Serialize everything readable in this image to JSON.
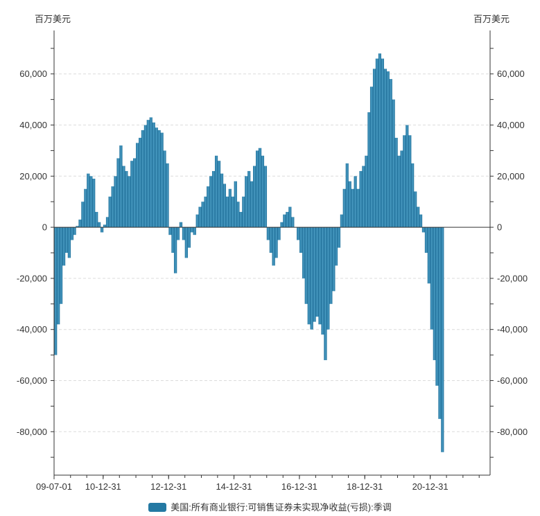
{
  "units": {
    "left": "百万美元",
    "right": "百万美元"
  },
  "legend": {
    "label": "美国:所有商业银行:可销售证券未实现净收益(亏损):季调",
    "color": "#2479a3"
  },
  "chart_data": {
    "type": "bar",
    "title": "",
    "x_ticks": [
      "09-07-01",
      "10-12-31",
      "12-12-31",
      "14-12-31",
      "16-12-31",
      "18-12-31",
      "20-12-31"
    ],
    "x_range": [
      "2009-07-01",
      "2022-10-31"
    ],
    "ylim": [
      -97000,
      77000
    ],
    "y_ticks": [
      -80000,
      -60000,
      -40000,
      -20000,
      0,
      20000,
      40000,
      60000
    ],
    "y_tick_labels": [
      "-80,000",
      "-60,000",
      "-40,000",
      "-20,000",
      "0",
      "20,000",
      "40,000",
      "60,000"
    ],
    "grid": "horizontal dashed",
    "legend_position": "bottom",
    "series": [
      {
        "name": "美国:所有商业银行:可销售证券未实现净收益(亏损):季调",
        "color": "#2479a3",
        "points": [
          [
            "2009-07-01",
            -50000
          ],
          [
            "2009-08-01",
            -38000
          ],
          [
            "2009-09-01",
            -30000
          ],
          [
            "2009-10-01",
            -15000
          ],
          [
            "2009-11-01",
            -10000
          ],
          [
            "2009-12-01",
            -12000
          ],
          [
            "2010-01-01",
            -5000
          ],
          [
            "2010-02-01",
            -3000
          ],
          [
            "2010-03-01",
            500
          ],
          [
            "2010-04-01",
            3000
          ],
          [
            "2010-05-01",
            10000
          ],
          [
            "2010-06-01",
            15000
          ],
          [
            "2010-07-01",
            21000
          ],
          [
            "2010-08-01",
            20000
          ],
          [
            "2010-09-01",
            19000
          ],
          [
            "2010-10-01",
            6000
          ],
          [
            "2010-11-01",
            2000
          ],
          [
            "2010-12-01",
            -2000
          ],
          [
            "2011-01-01",
            1000
          ],
          [
            "2011-02-01",
            4000
          ],
          [
            "2011-03-01",
            12000
          ],
          [
            "2011-04-01",
            16000
          ],
          [
            "2011-05-01",
            20000
          ],
          [
            "2011-06-01",
            27000
          ],
          [
            "2011-07-01",
            32000
          ],
          [
            "2011-08-01",
            24000
          ],
          [
            "2011-09-01",
            22000
          ],
          [
            "2011-10-01",
            20000
          ],
          [
            "2011-11-01",
            26000
          ],
          [
            "2011-12-01",
            27000
          ],
          [
            "2012-01-01",
            33000
          ],
          [
            "2012-02-01",
            35000
          ],
          [
            "2012-03-01",
            38000
          ],
          [
            "2012-04-01",
            40000
          ],
          [
            "2012-05-01",
            42000
          ],
          [
            "2012-06-01",
            43000
          ],
          [
            "2012-07-01",
            41000
          ],
          [
            "2012-08-01",
            39000
          ],
          [
            "2012-09-01",
            38000
          ],
          [
            "2012-10-01",
            37000
          ],
          [
            "2012-11-01",
            30000
          ],
          [
            "2012-12-01",
            25000
          ],
          [
            "2013-01-01",
            -3000
          ],
          [
            "2013-02-01",
            -10000
          ],
          [
            "2013-03-01",
            -18000
          ],
          [
            "2013-04-01",
            -5000
          ],
          [
            "2013-05-01",
            2000
          ],
          [
            "2013-06-01",
            -5000
          ],
          [
            "2013-07-01",
            -12000
          ],
          [
            "2013-08-01",
            -8000
          ],
          [
            "2013-09-01",
            -2000
          ],
          [
            "2013-10-01",
            -3000
          ],
          [
            "2013-11-01",
            5000
          ],
          [
            "2013-12-01",
            8000
          ],
          [
            "2014-01-01",
            10000
          ],
          [
            "2014-02-01",
            12000
          ],
          [
            "2014-03-01",
            16000
          ],
          [
            "2014-04-01",
            20000
          ],
          [
            "2014-05-01",
            22000
          ],
          [
            "2014-06-01",
            28000
          ],
          [
            "2014-07-01",
            26000
          ],
          [
            "2014-08-01",
            21000
          ],
          [
            "2014-09-01",
            17000
          ],
          [
            "2014-10-01",
            12000
          ],
          [
            "2014-11-01",
            15000
          ],
          [
            "2014-12-01",
            12000
          ],
          [
            "2015-01-01",
            18000
          ],
          [
            "2015-02-01",
            10000
          ],
          [
            "2015-03-01",
            6000
          ],
          [
            "2015-04-01",
            12000
          ],
          [
            "2015-05-01",
            20000
          ],
          [
            "2015-06-01",
            22000
          ],
          [
            "2015-07-01",
            18000
          ],
          [
            "2015-08-01",
            24000
          ],
          [
            "2015-09-01",
            30000
          ],
          [
            "2015-10-01",
            31000
          ],
          [
            "2015-11-01",
            28000
          ],
          [
            "2015-12-01",
            24000
          ],
          [
            "2016-01-01",
            -5000
          ],
          [
            "2016-02-01",
            -10000
          ],
          [
            "2016-03-01",
            -15000
          ],
          [
            "2016-04-01",
            -12000
          ],
          [
            "2016-05-01",
            -5000
          ],
          [
            "2016-06-01",
            2000
          ],
          [
            "2016-07-01",
            5000
          ],
          [
            "2016-08-01",
            6000
          ],
          [
            "2016-09-01",
            8000
          ],
          [
            "2016-10-01",
            4000
          ],
          [
            "2016-11-01",
            0
          ],
          [
            "2016-12-01",
            -5000
          ],
          [
            "2017-01-01",
            -10000
          ],
          [
            "2017-02-01",
            -20000
          ],
          [
            "2017-03-01",
            -30000
          ],
          [
            "2017-04-01",
            -38000
          ],
          [
            "2017-05-01",
            -40000
          ],
          [
            "2017-06-01",
            -37000
          ],
          [
            "2017-07-01",
            -35000
          ],
          [
            "2017-08-01",
            -38000
          ],
          [
            "2017-09-01",
            -42000
          ],
          [
            "2017-10-01",
            -52000
          ],
          [
            "2017-11-01",
            -40000
          ],
          [
            "2017-12-01",
            -30000
          ],
          [
            "2018-01-01",
            -25000
          ],
          [
            "2018-02-01",
            -15000
          ],
          [
            "2018-03-01",
            -8000
          ],
          [
            "2018-04-01",
            5000
          ],
          [
            "2018-05-01",
            15000
          ],
          [
            "2018-06-01",
            25000
          ],
          [
            "2018-07-01",
            18000
          ],
          [
            "2018-08-01",
            15000
          ],
          [
            "2018-09-01",
            20000
          ],
          [
            "2018-10-01",
            15000
          ],
          [
            "2018-11-01",
            22000
          ],
          [
            "2018-12-01",
            24000
          ],
          [
            "2019-01-01",
            28000
          ],
          [
            "2019-02-01",
            45000
          ],
          [
            "2019-03-01",
            55000
          ],
          [
            "2019-04-01",
            62000
          ],
          [
            "2019-05-01",
            66000
          ],
          [
            "2019-06-01",
            68000
          ],
          [
            "2019-07-01",
            66000
          ],
          [
            "2019-08-01",
            62000
          ],
          [
            "2019-09-01",
            61000
          ],
          [
            "2019-10-01",
            58000
          ],
          [
            "2019-11-01",
            50000
          ],
          [
            "2019-12-01",
            35000
          ],
          [
            "2020-01-01",
            28000
          ],
          [
            "2020-02-01",
            30000
          ],
          [
            "2020-03-01",
            36000
          ],
          [
            "2020-04-01",
            40000
          ],
          [
            "2020-05-01",
            36000
          ],
          [
            "2020-06-01",
            25000
          ],
          [
            "2020-07-01",
            14000
          ],
          [
            "2020-08-01",
            8000
          ],
          [
            "2020-09-01",
            5000
          ],
          [
            "2020-10-01",
            -2000
          ],
          [
            "2020-11-01",
            -10000
          ],
          [
            "2020-12-01",
            -22000
          ],
          [
            "2021-01-01",
            -40000
          ],
          [
            "2021-02-01",
            -52000
          ],
          [
            "2021-03-01",
            -62000
          ],
          [
            "2021-04-01",
            -75000
          ],
          [
            "2021-05-01",
            -88000
          ]
        ]
      }
    ]
  }
}
